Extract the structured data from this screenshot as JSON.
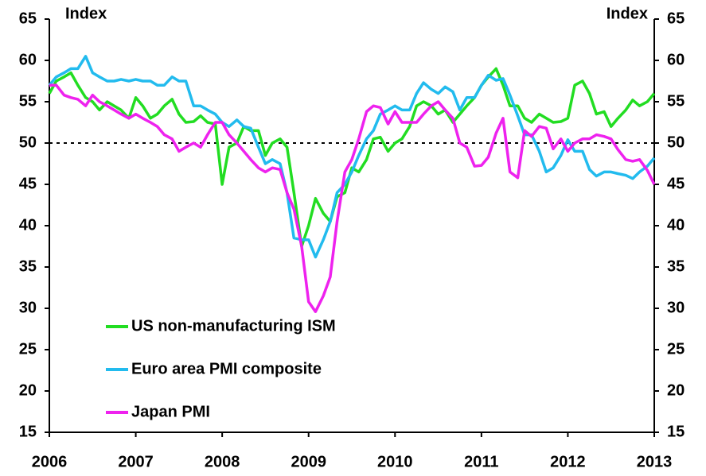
{
  "chart_data": {
    "type": "line",
    "ylabel": "Index",
    "y2label": "Index",
    "x": [
      2006.0,
      2006.08,
      2006.17,
      2006.25,
      2006.33,
      2006.42,
      2006.5,
      2006.58,
      2006.67,
      2006.75,
      2006.83,
      2006.92,
      2007.0,
      2007.08,
      2007.17,
      2007.25,
      2007.33,
      2007.42,
      2007.5,
      2007.58,
      2007.67,
      2007.75,
      2007.83,
      2007.92,
      2008.0,
      2008.08,
      2008.17,
      2008.25,
      2008.33,
      2008.42,
      2008.5,
      2008.58,
      2008.67,
      2008.75,
      2008.83,
      2008.92,
      2009.0,
      2009.08,
      2009.17,
      2009.25,
      2009.33,
      2009.42,
      2009.5,
      2009.58,
      2009.67,
      2009.75,
      2009.83,
      2009.92,
      2010.0,
      2010.08,
      2010.17,
      2010.25,
      2010.33,
      2010.42,
      2010.5,
      2010.58,
      2010.67,
      2010.75,
      2010.83,
      2010.92,
      2011.0,
      2011.08,
      2011.17,
      2011.25,
      2011.33,
      2011.42,
      2011.5,
      2011.58,
      2011.67,
      2011.75,
      2011.83,
      2011.92,
      2012.0,
      2012.08,
      2012.17,
      2012.25,
      2012.33,
      2012.42,
      2012.5,
      2012.58,
      2012.67,
      2012.75,
      2012.83,
      2012.92,
      2013.0
    ],
    "series": [
      {
        "name": "US non-manufacturing ISM",
        "color": "#22dd22",
        "values": [
          56,
          57.5,
          58,
          58.5,
          57,
          55.5,
          55,
          54,
          55,
          54.5,
          54,
          53,
          55.5,
          54.5,
          53,
          53.5,
          54.5,
          55.3,
          53.5,
          52.5,
          52.6,
          53.3,
          52.5,
          52.3,
          45,
          49.5,
          50,
          52,
          51.5,
          51.5,
          48.5,
          50,
          50.5,
          49.5,
          44,
          37.5,
          40,
          43.3,
          41.5,
          40.5,
          43.5,
          44,
          47,
          46.5,
          48,
          50.5,
          50.7,
          49,
          50,
          50.5,
          52,
          54.5,
          55,
          54.5,
          53.5,
          54,
          52.5,
          53.5,
          54.5,
          55.5,
          57,
          58,
          59,
          57,
          54.5,
          54.5,
          53,
          52.5,
          53.5,
          53,
          52.5,
          52.6,
          53,
          57,
          57.5,
          56,
          53.5,
          53.8,
          52,
          53,
          54,
          55.2,
          54.5,
          55,
          56
        ]
      },
      {
        "name": "Euro area PMI composite",
        "color": "#22bbee",
        "values": [
          57,
          58,
          58.5,
          59,
          59,
          60.5,
          58.5,
          58,
          57.5,
          57.5,
          57.7,
          57.5,
          57.7,
          57.5,
          57.5,
          57,
          57,
          58,
          57.5,
          57.5,
          54.5,
          54.5,
          54,
          53.5,
          52.5,
          52,
          52.8,
          52,
          51.8,
          49.5,
          47.5,
          48,
          47.5,
          44,
          38.5,
          38.3,
          38.3,
          36.2,
          38.3,
          40.5,
          44,
          45,
          46.5,
          48.5,
          50.5,
          51.5,
          53.5,
          54,
          54.5,
          54,
          54,
          56,
          57.3,
          56.5,
          56,
          56.8,
          56.2,
          54,
          55.5,
          55.5,
          57,
          58.2,
          57.6,
          57.8,
          55.8,
          53.3,
          51,
          51,
          49,
          46.5,
          47,
          48.5,
          50.4,
          49,
          49,
          46.8,
          46,
          46.5,
          46.5,
          46.3,
          46.1,
          45.7,
          46.5,
          47.2,
          48.2
        ]
      },
      {
        "name": "Japan PMI",
        "color": "#ee22ee",
        "values": [
          57,
          57,
          55.8,
          55.5,
          55.3,
          54.5,
          55.8,
          55,
          54.5,
          54,
          53.5,
          53,
          53.5,
          53,
          52.5,
          52,
          51,
          50.5,
          49,
          49.5,
          50,
          49.5,
          51,
          52.5,
          52.5,
          51,
          50,
          49,
          48,
          47,
          46.5,
          47,
          46.8,
          44,
          42,
          37.5,
          30.8,
          29.6,
          31.5,
          33.8,
          40.5,
          46.5,
          48,
          50.5,
          53.8,
          54.5,
          54.3,
          52.3,
          53.8,
          52.5,
          52.5,
          52.5,
          53.5,
          54.5,
          55,
          54,
          53,
          50,
          49.5,
          47.2,
          47.3,
          48.3,
          51.2,
          53,
          46.5,
          45.8,
          51.5,
          50.8,
          52,
          51.8,
          49.3,
          50.5,
          49,
          50,
          50.5,
          50.5,
          51,
          50.8,
          50.5,
          49.2,
          48,
          47.8,
          48,
          46.7,
          45
        ]
      }
    ],
    "hline": 50,
    "xlim": [
      2006,
      2013
    ],
    "xticks": [
      2006,
      2007,
      2008,
      2009,
      2010,
      2011,
      2012,
      2013
    ],
    "ylim": [
      15,
      65
    ],
    "yticks": [
      15,
      20,
      25,
      30,
      35,
      40,
      45,
      50,
      55,
      60,
      65
    ],
    "y2lim": [
      15,
      65
    ],
    "y2ticks": [
      15,
      20,
      25,
      30,
      35,
      40,
      45,
      50,
      55,
      60,
      65
    ],
    "legend": "lower left"
  }
}
